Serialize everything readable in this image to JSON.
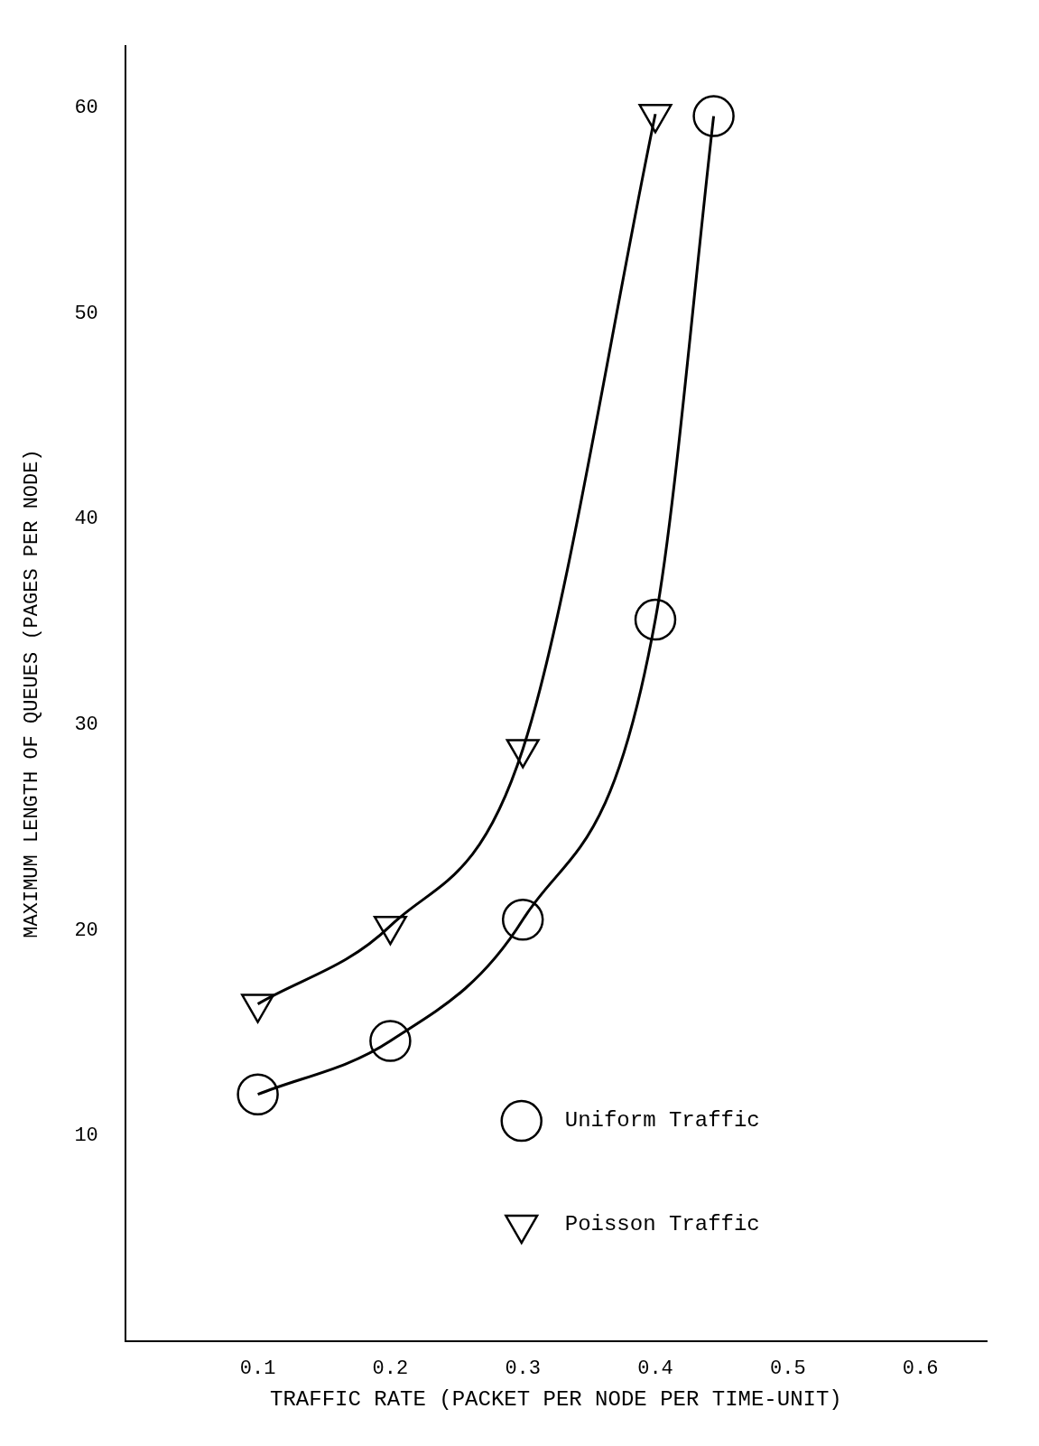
{
  "chart_data": {
    "type": "line",
    "xlabel": "TRAFFIC RATE (PACKET PER NODE PER TIME-UNIT)",
    "ylabel": "MAXIMUM LENGTH OF QUEUES (PAGES PER NODE)",
    "xlim": [
      0,
      0.65
    ],
    "xticks": [
      {
        "value": 0.1,
        "label": "0.1"
      },
      {
        "value": 0.2,
        "label": "0.2"
      },
      {
        "value": 0.3,
        "label": "0.3"
      },
      {
        "value": 0.4,
        "label": "0.4"
      },
      {
        "value": 0.5,
        "label": "0.5"
      },
      {
        "value": 0.6,
        "label": "0.6"
      }
    ],
    "ylim": [
      0,
      63
    ],
    "yticks": [
      10,
      20,
      30,
      40,
      50,
      60
    ],
    "grid": false,
    "legend": "bottom right",
    "line_style": "solid",
    "series": [
      {
        "name": "Uniform Traffic",
        "color": "#000000",
        "marker": "circle",
        "x": [
          0.1,
          0.2,
          0.3,
          0.4,
          0.444
        ],
        "values": [
          12.0,
          14.6,
          20.5,
          35.1,
          59.6
        ]
      },
      {
        "name": "Poisson Traffic",
        "color": "#000000",
        "marker": "triangle",
        "x": [
          0.1,
          0.2,
          0.3,
          0.4
        ],
        "values": [
          16.4,
          20.2,
          28.8,
          59.7
        ]
      }
    ]
  }
}
